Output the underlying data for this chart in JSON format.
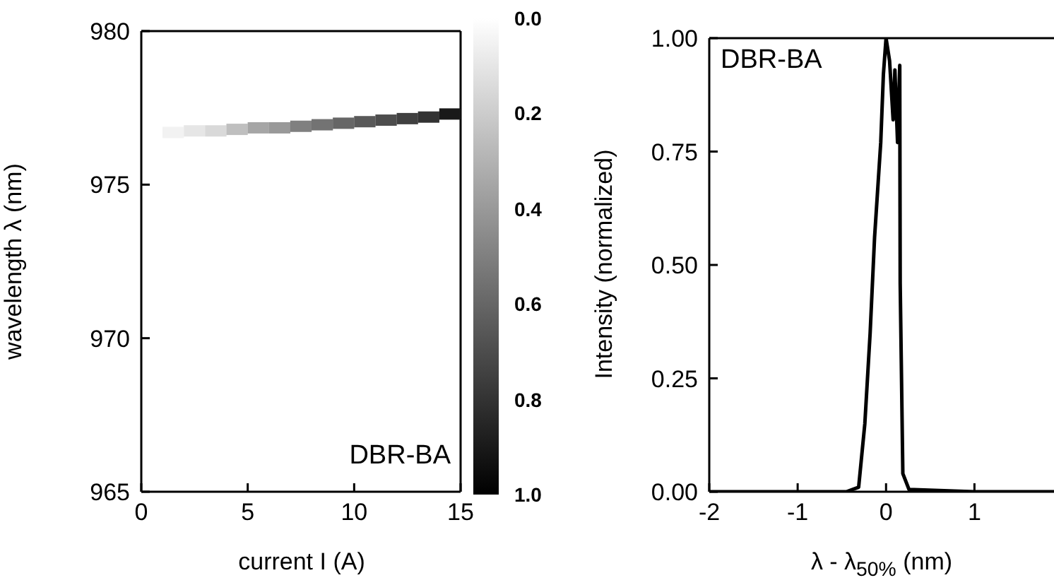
{
  "chart_data": [
    {
      "type": "scatter",
      "xlabel": "current I (A)",
      "ylabel": "wavelength λ (nm)",
      "marker": "square",
      "x": [
        1.5,
        2.5,
        3.5,
        4.5,
        5.5,
        6.5,
        7.5,
        8.5,
        9.5,
        10.5,
        11.5,
        12.5,
        13.5,
        14.5
      ],
      "values": [
        976.7,
        976.75,
        976.75,
        976.8,
        976.85,
        976.85,
        976.9,
        976.95,
        977.0,
        977.05,
        977.1,
        977.15,
        977.2,
        977.3
      ],
      "cvalues": [
        0.05,
        0.1,
        0.15,
        0.25,
        0.35,
        0.4,
        0.5,
        0.55,
        0.6,
        0.65,
        0.7,
        0.75,
        0.8,
        0.9
      ],
      "clim": [
        0,
        1
      ],
      "cticks": [
        {
          "value": 0,
          "label": "0.0"
        },
        {
          "value": 0.2,
          "label": "0.2"
        },
        {
          "value": 0.4,
          "label": "0.4"
        },
        {
          "value": 0.6,
          "label": "0.6"
        },
        {
          "value": 0.8,
          "label": "0.8"
        },
        {
          "value": 1,
          "label": "1.0"
        }
      ],
      "xlim": [
        0,
        15
      ],
      "xticks": [
        0,
        5,
        10,
        15
      ],
      "ylim": [
        965,
        980
      ],
      "yticks": [
        965,
        970,
        975,
        980
      ],
      "annotations": [
        "DBR-BA"
      ]
    },
    {
      "type": "line",
      "xlabel": "λ - λ$_{50%}$ (nm)",
      "ylabel": "Intensity (normalized)",
      "marker": "none",
      "line_style": "solid",
      "series": [
        {
          "color": "#000000",
          "x": [
            -2,
            -1,
            -0.45,
            -0.31,
            -0.24,
            -0.18,
            -0.13,
            -0.06,
            -0.03,
            0,
            0.04,
            0.08,
            0.1,
            0.13,
            0.155,
            0.16,
            0.19,
            0.26,
            1,
            1.9
          ],
          "values": [
            0,
            0,
            0,
            0.01,
            0.15,
            0.35,
            0.56,
            0.77,
            0.92,
            1.0,
            0.95,
            0.82,
            0.93,
            0.77,
            0.94,
            0.46,
            0.04,
            0.005,
            0,
            0
          ]
        }
      ],
      "xlim": [
        -2,
        1.9
      ],
      "xticks": [
        -2,
        -1,
        0,
        1
      ],
      "ylim": [
        0,
        1
      ],
      "yticks": [
        {
          "value": 0,
          "label": "0.00"
        },
        {
          "value": 0.25,
          "label": "0.25"
        },
        {
          "value": 0.5,
          "label": "0.50"
        },
        {
          "value": 0.75,
          "label": "0.75"
        },
        {
          "value": 1,
          "label": "1.00"
        }
      ],
      "annotations": [
        "DBR-BA"
      ]
    }
  ]
}
